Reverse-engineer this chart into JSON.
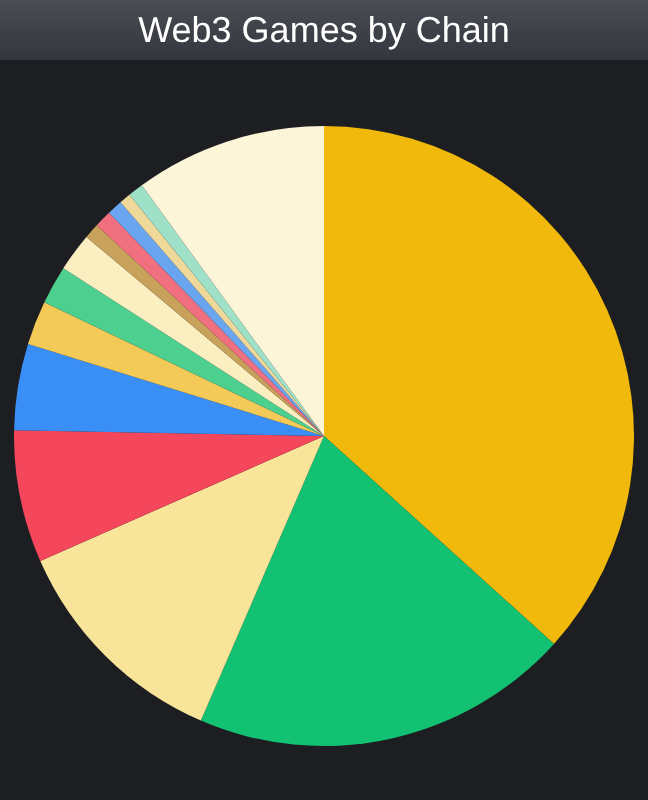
{
  "chart_data": {
    "type": "pie",
    "title": "Web3 Games by Chain",
    "categories": [
      null,
      null,
      null,
      null,
      null,
      null,
      null,
      null,
      null,
      null,
      null,
      null,
      null,
      null
    ],
    "values": [
      36.7,
      19.8,
      11.9,
      6.9,
      4.5,
      2.3,
      2.0,
      2.0,
      0.8,
      0.9,
      0.8,
      0.6,
      0.8,
      10.0
    ],
    "colors": [
      "#f0b90b",
      "#13c172",
      "#f9e59a",
      "#f5475c",
      "#3a8ff7",
      "#f3c957",
      "#4ccf8f",
      "#fbeec0",
      "#c8a15a",
      "#f07080",
      "#6aa6f0",
      "#eed89a",
      "#9fe0c8",
      "#fdf5d8"
    ]
  }
}
